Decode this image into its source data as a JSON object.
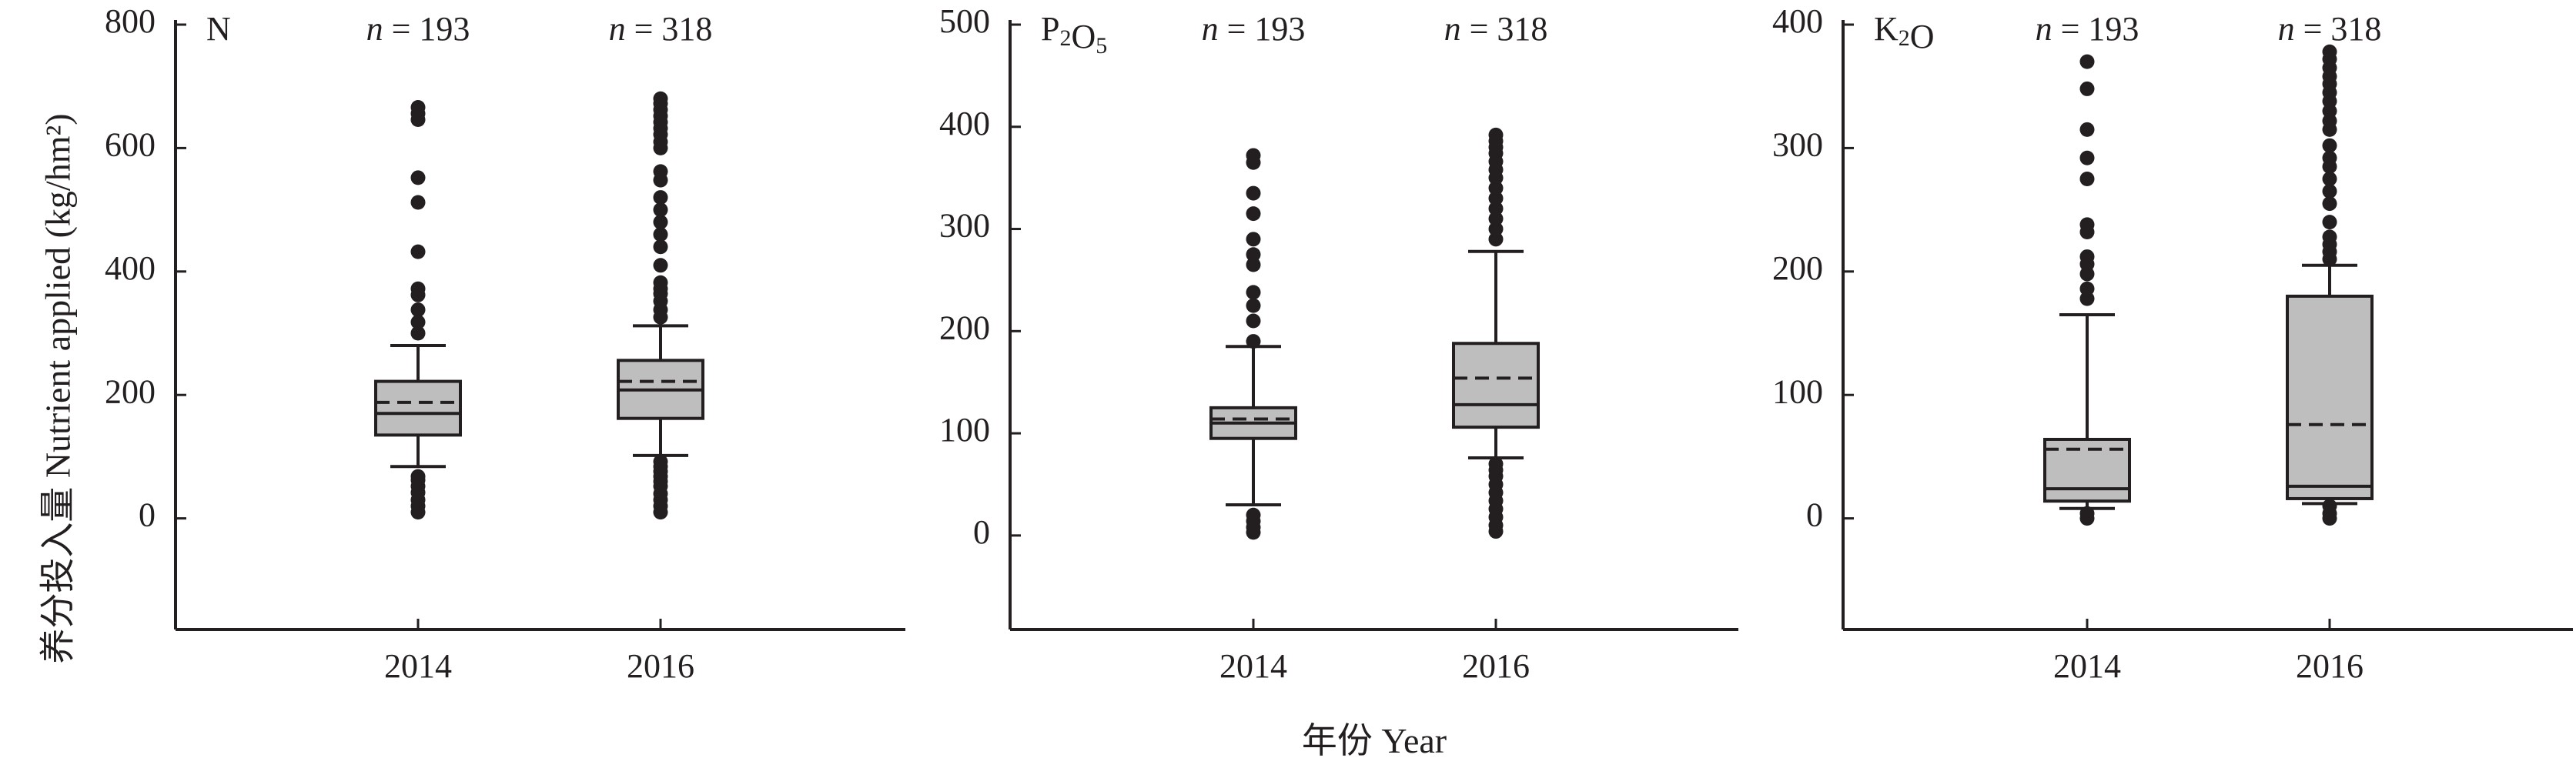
{
  "ylabel": "养分投入量 Nutrient applied (kg/hm²)",
  "xlabel": "年份 Year",
  "chart_data": [
    {
      "type": "box",
      "panel_label": "N",
      "categories": [
        "2014",
        "2016"
      ],
      "n_labels": [
        "n = 193",
        "n = 318"
      ],
      "ylim": [
        -180,
        800
      ],
      "yticks": [
        0,
        200,
        400,
        600,
        800
      ],
      "boxes": [
        {
          "category": "2014",
          "n": 193,
          "whisker_low": 84,
          "q1": 135,
          "median": 170,
          "mean": 188,
          "q3": 222,
          "whisker_high": 280,
          "outliers": [
            10,
            20,
            30,
            42,
            52,
            62,
            68,
            300,
            318,
            338,
            362,
            372,
            432,
            512,
            552,
            646,
            656,
            666
          ]
        },
        {
          "category": "2016",
          "n": 318,
          "whisker_low": 102,
          "q1": 162,
          "median": 208,
          "mean": 222,
          "q3": 256,
          "whisker_high": 312,
          "outliers": [
            10,
            20,
            30,
            40,
            52,
            60,
            68,
            76,
            84,
            92,
            326,
            338,
            352,
            364,
            372,
            382,
            410,
            440,
            460,
            480,
            500,
            520,
            548,
            562,
            600,
            610,
            622,
            632,
            642,
            652,
            662,
            672,
            680
          ]
        }
      ]
    },
    {
      "type": "box",
      "panel_label": "P₂O₅",
      "categories": [
        "2014",
        "2016"
      ],
      "n_labels": [
        "n = 193",
        "n = 318"
      ],
      "ylim": [
        -92,
        500
      ],
      "yticks": [
        0,
        100,
        200,
        300,
        400,
        500
      ],
      "boxes": [
        {
          "category": "2014",
          "n": 193,
          "whisker_low": 30,
          "q1": 95,
          "median": 110,
          "mean": 114,
          "q3": 125,
          "whisker_high": 185,
          "outliers": [
            3,
            8,
            14,
            20,
            190,
            210,
            225,
            238,
            265,
            275,
            290,
            315,
            335,
            365,
            372
          ]
        },
        {
          "category": "2016",
          "n": 318,
          "whisker_low": 76,
          "q1": 106,
          "median": 128,
          "mean": 154,
          "q3": 188,
          "whisker_high": 278,
          "outliers": [
            4,
            10,
            18,
            26,
            34,
            42,
            50,
            58,
            64,
            70,
            290,
            300,
            310,
            320,
            330,
            340,
            350,
            358,
            366,
            374,
            380,
            386,
            392
          ]
        }
      ]
    },
    {
      "type": "box",
      "panel_label": "K₂O",
      "categories": [
        "2014",
        "2016"
      ],
      "n_labels": [
        "n = 193",
        "n = 318"
      ],
      "ylim": [
        -90,
        400
      ],
      "yticks": [
        0,
        100,
        200,
        300,
        400
      ],
      "boxes": [
        {
          "category": "2014",
          "n": 193,
          "whisker_low": 8,
          "q1": 14,
          "median": 24,
          "mean": 56,
          "q3": 64,
          "whisker_high": 165,
          "outliers": [
            0,
            4,
            178,
            186,
            198,
            206,
            212,
            232,
            238,
            275,
            292,
            315,
            348,
            370
          ]
        },
        {
          "category": "2016",
          "n": 318,
          "whisker_low": 12,
          "q1": 16,
          "median": 26,
          "mean": 76,
          "q3": 180,
          "whisker_high": 205,
          "outliers": [
            0,
            4,
            10,
            210,
            216,
            222,
            228,
            240,
            255,
            265,
            275,
            285,
            292,
            302,
            315,
            322,
            330,
            338,
            345,
            352,
            358,
            365,
            372,
            378
          ]
        }
      ]
    }
  ]
}
